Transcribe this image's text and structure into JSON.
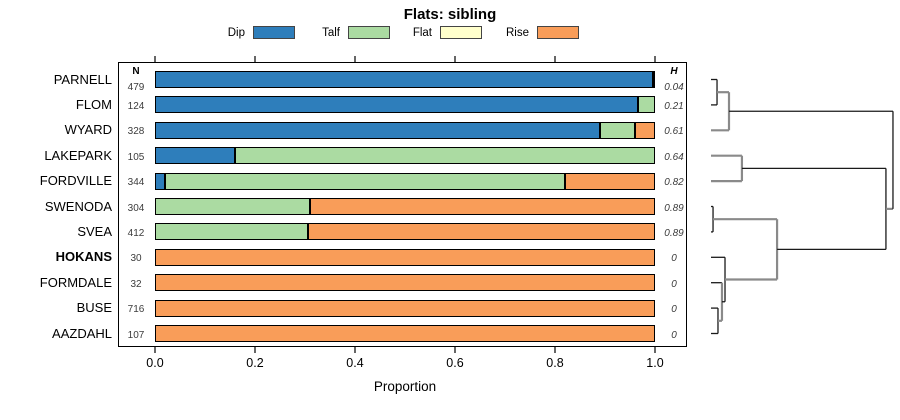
{
  "title": "Flats: sibling",
  "xlabel": "Proportion",
  "columns": {
    "n_header": "N",
    "h_header": "H"
  },
  "legend": [
    {
      "label": "Dip",
      "color": "#2E7EBB"
    },
    {
      "label": "Talf",
      "color": "#ABDBA2"
    },
    {
      "label": "Flat",
      "color": "#FFFFCC"
    },
    {
      "label": "Rise",
      "color": "#F99D59"
    }
  ],
  "chart_data": {
    "type": "bar",
    "stacked": true,
    "orientation": "horizontal",
    "title": "Flats: sibling",
    "xlabel": "Proportion",
    "xlim": [
      0,
      1
    ],
    "x_ticks": [
      "0.0",
      "0.2",
      "0.4",
      "0.6",
      "0.8",
      "1.0"
    ],
    "categories": [
      "PARNELL",
      "FLOM",
      "WYARD",
      "LAKEPARK",
      "FORDVILLE",
      "SWENODA",
      "SVEA",
      "HOKANS",
      "FORMDALE",
      "BUSE",
      "AAZDAHL"
    ],
    "bold_categories": [
      "HOKANS"
    ],
    "series": [
      {
        "name": "Dip",
        "color": "#2E7EBB",
        "values": [
          0.995,
          0.965,
          0.89,
          0.16,
          0.02,
          0,
          0,
          0,
          0,
          0,
          0
        ]
      },
      {
        "name": "Talf",
        "color": "#ABDBA2",
        "values": [
          0.005,
          0.035,
          0.07,
          0.84,
          0.8,
          0.31,
          0.305,
          0,
          0,
          0,
          0
        ]
      },
      {
        "name": "Flat",
        "color": "#FFFFCC",
        "values": [
          0,
          0,
          0,
          0,
          0,
          0,
          0,
          0,
          0,
          0,
          0
        ]
      },
      {
        "name": "Rise",
        "color": "#F99D59",
        "values": [
          0,
          0,
          0.04,
          0,
          0.18,
          0.69,
          0.695,
          1,
          1,
          1,
          1
        ]
      }
    ],
    "N": [
      479,
      124,
      328,
      105,
      344,
      304,
      412,
      30,
      32,
      716,
      107
    ],
    "H": [
      "0.04",
      "0.21",
      "0.61",
      "0.64",
      "0.82",
      "0.89",
      "0.89",
      "0",
      "0",
      "0",
      "0"
    ],
    "dendrogram": {
      "line_colors": {
        "black": "#1a1a1a",
        "gray": "#8a8a8a"
      },
      "merges": [
        {
          "id": "A",
          "left": {
            "leaf": 0
          },
          "right": {
            "leaf": 1
          },
          "h": 0.037,
          "color": "black"
        },
        {
          "id": "D",
          "left": {
            "leaf": 5
          },
          "right": {
            "leaf": 6
          },
          "h": 0.016,
          "color": "black"
        },
        {
          "id": "M1",
          "left": {
            "leaf": 9
          },
          "right": {
            "leaf": 10
          },
          "h": 0.042,
          "color": "black"
        },
        {
          "id": "M2",
          "left": {
            "leaf": 8
          },
          "right": {
            "merge": "M1"
          },
          "h": 0.063,
          "color": "gray",
          "arm_colors": {
            "left": "black"
          }
        },
        {
          "id": "M3",
          "left": {
            "leaf": 7
          },
          "right": {
            "merge": "M2"
          },
          "h": 0.079,
          "color": "black"
        },
        {
          "id": "B",
          "left": {
            "merge": "A"
          },
          "right": {
            "leaf": 2
          },
          "h": 0.1,
          "color": "gray"
        },
        {
          "id": "C",
          "left": {
            "leaf": 3
          },
          "right": {
            "leaf": 4
          },
          "h": 0.168,
          "color": "gray"
        },
        {
          "id": "G",
          "left": {
            "merge": "D"
          },
          "right": {
            "merge": "M3"
          },
          "h": 0.353,
          "color": "gray"
        },
        {
          "id": "E",
          "left": {
            "merge": "C"
          },
          "right": {
            "merge": "G"
          },
          "h": 0.926,
          "color": "black"
        },
        {
          "id": "F",
          "left": {
            "merge": "B"
          },
          "right": {
            "merge": "E"
          },
          "h": 0.963,
          "color": "black",
          "arm_colors": {
            "right": "gray"
          }
        }
      ]
    }
  }
}
